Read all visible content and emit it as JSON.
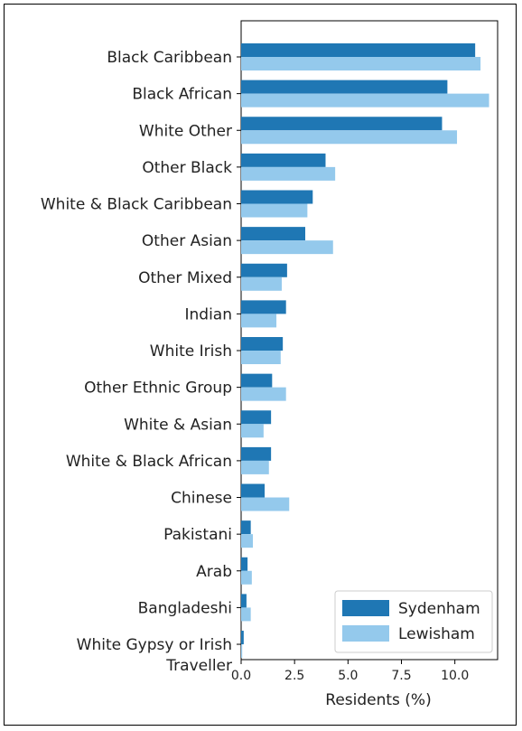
{
  "chart_data": {
    "type": "bar",
    "orientation": "horizontal",
    "categories": [
      "Black Caribbean",
      "Black African",
      "White Other",
      "Other Black",
      "White & Black Caribbean",
      "Other Asian",
      "Other Mixed",
      "Indian",
      "White Irish",
      "Other Ethnic Group",
      "White & Asian",
      "White & Black African",
      "Chinese",
      "Pakistani",
      "Arab",
      "Bangladeshi",
      "White Gypsy or Irish Traveller"
    ],
    "category_lines": [
      [
        "Black Caribbean"
      ],
      [
        "Black African"
      ],
      [
        "White Other"
      ],
      [
        "Other Black"
      ],
      [
        "White & Black Caribbean"
      ],
      [
        "Other Asian"
      ],
      [
        "Other Mixed"
      ],
      [
        "Indian"
      ],
      [
        "White Irish"
      ],
      [
        "Other Ethnic Group"
      ],
      [
        "White & Asian"
      ],
      [
        "White & Black African"
      ],
      [
        "Chinese"
      ],
      [
        "Pakistani"
      ],
      [
        "Arab"
      ],
      [
        "Bangladeshi"
      ],
      [
        "White Gypsy or Irish",
        "Traveller"
      ]
    ],
    "series": [
      {
        "name": "Sydenham",
        "color": "#1f77b4",
        "values": [
          10.95,
          9.65,
          9.4,
          3.95,
          3.35,
          3.0,
          2.15,
          2.1,
          1.95,
          1.45,
          1.4,
          1.4,
          1.1,
          0.45,
          0.3,
          0.25,
          0.12
        ]
      },
      {
        "name": "Lewisham",
        "color": "#94c9ec",
        "values": [
          11.2,
          11.6,
          10.1,
          4.4,
          3.1,
          4.3,
          1.9,
          1.65,
          1.85,
          2.1,
          1.05,
          1.3,
          2.25,
          0.55,
          0.5,
          0.45,
          0.05
        ]
      }
    ],
    "xlabel": "Residents (%)",
    "ylabel": "",
    "xlim": [
      0,
      12
    ],
    "xticks": [
      "0.0",
      "2.5",
      "5.0",
      "7.5",
      "10.0"
    ],
    "xtick_values": [
      0,
      2.5,
      5,
      7.5,
      10
    ],
    "grid": false,
    "legend_position": "lower-right"
  }
}
